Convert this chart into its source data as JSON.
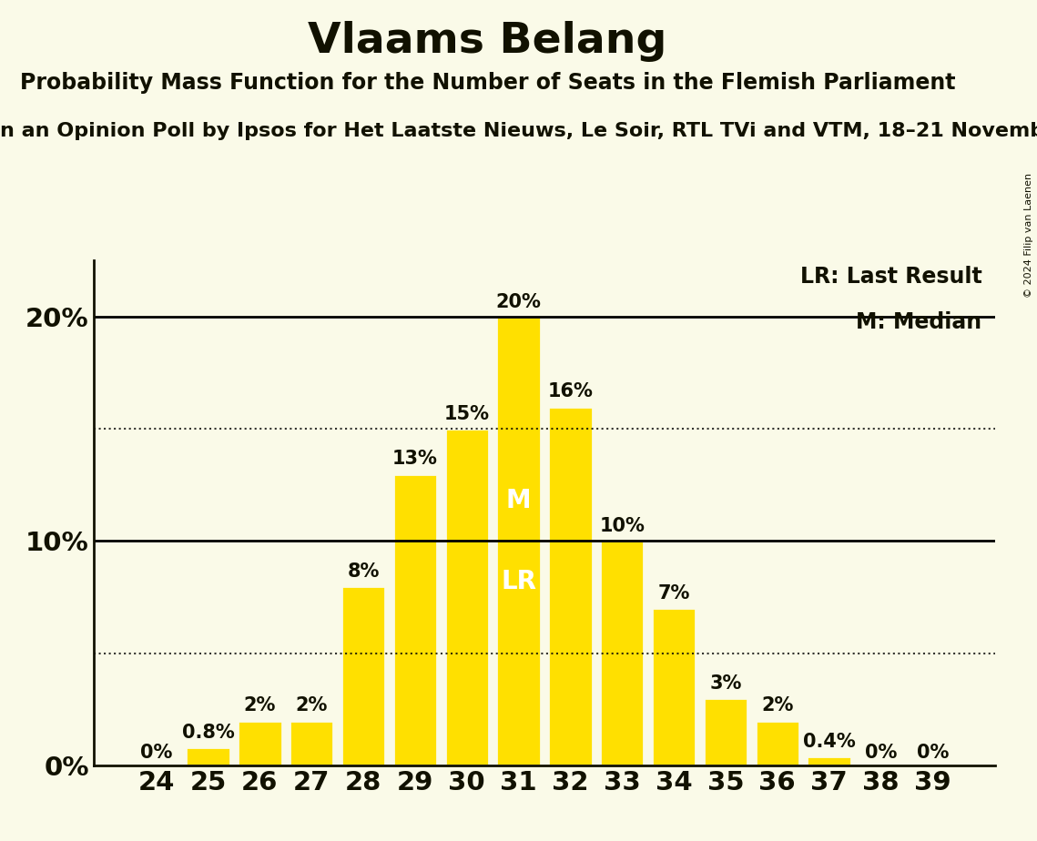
{
  "title": "Vlaams Belang",
  "subtitle": "Probability Mass Function for the Number of Seats in the Flemish Parliament",
  "sub_subtitle_display": "n an Opinion Poll by Ipsos for Het Laatste Nieuws, Le Soir, RTL TVi and VTM, 18–21 Novemb",
  "copyright": "© 2024 Filip van Laenen",
  "seats": [
    24,
    25,
    26,
    27,
    28,
    29,
    30,
    31,
    32,
    33,
    34,
    35,
    36,
    37,
    38,
    39
  ],
  "probabilities": [
    0.0,
    0.8,
    2.0,
    2.0,
    8.0,
    13.0,
    15.0,
    20.0,
    16.0,
    10.0,
    7.0,
    3.0,
    2.0,
    0.4,
    0.0,
    0.0
  ],
  "bar_labels": [
    "0%",
    "0.8%",
    "2%",
    "2%",
    "8%",
    "13%",
    "15%",
    "20%",
    "16%",
    "10%",
    "7%",
    "3%",
    "2%",
    "0.4%",
    "0%",
    "0%"
  ],
  "bar_color": "#FFE000",
  "background_color": "#FAFAE8",
  "text_color": "#111100",
  "bar_edge_color": "#FAFAE8",
  "median_seat": 31,
  "last_result_seat": 31,
  "median_label": "M",
  "last_result_label": "LR",
  "legend_lr": "LR: Last Result",
  "legend_m": "M: Median",
  "yticks": [
    0,
    10,
    20
  ],
  "ytick_labels": [
    "0%",
    "10%",
    "20%"
  ],
  "ylim": [
    0,
    22.5
  ],
  "dotted_lines": [
    5,
    15
  ],
  "title_fontsize": 34,
  "subtitle_fontsize": 17,
  "sub_subtitle_fontsize": 16,
  "axis_fontsize": 21,
  "bar_label_fontsize": 15,
  "legend_fontsize": 17,
  "inside_label_fontsize": 20
}
